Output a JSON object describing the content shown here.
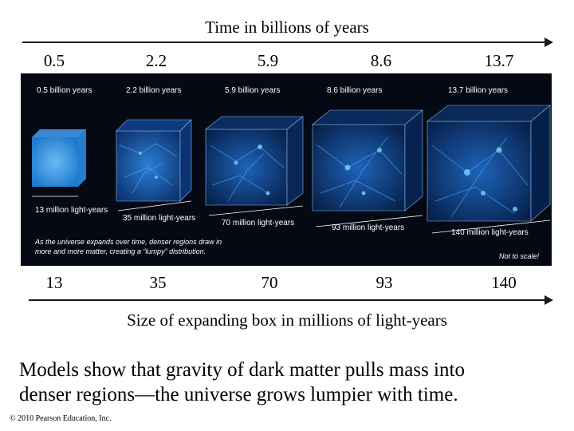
{
  "header": {
    "title": "Time in billions of years"
  },
  "time_values": [
    "0.5",
    "2.2",
    "5.9",
    "8.6",
    "13.7"
  ],
  "size_values": [
    "13",
    "35",
    "70",
    "93",
    "140"
  ],
  "footer_axis": {
    "title": "Size of expanding box in millions of light-years"
  },
  "image": {
    "time_labels": [
      "0.5 billion years",
      "2.2 billion years",
      "5.9 billion years",
      "8.6 billion years",
      "13.7 billion years"
    ],
    "size_labels": [
      "13 million light-years",
      "35 million light-years",
      "70 million light-years",
      "93 million light-years",
      "140 million light-years"
    ],
    "caption_line1": "As the universe expands over time, denser regions draw in",
    "caption_line2": "more and more matter, creating a “lumpy” distribution.",
    "scale_note": "Not to scale!"
  },
  "statement": {
    "line1": "Models show that gravity of dark matter pulls mass into",
    "line2": "denser regions—the universe grows lumpier with time."
  },
  "copyright": "© 2010 Pearson Education, Inc.",
  "colors": {
    "panel_bg": "#050914",
    "matter_glow": "#3aa0ff",
    "text_dark": "#000000"
  }
}
